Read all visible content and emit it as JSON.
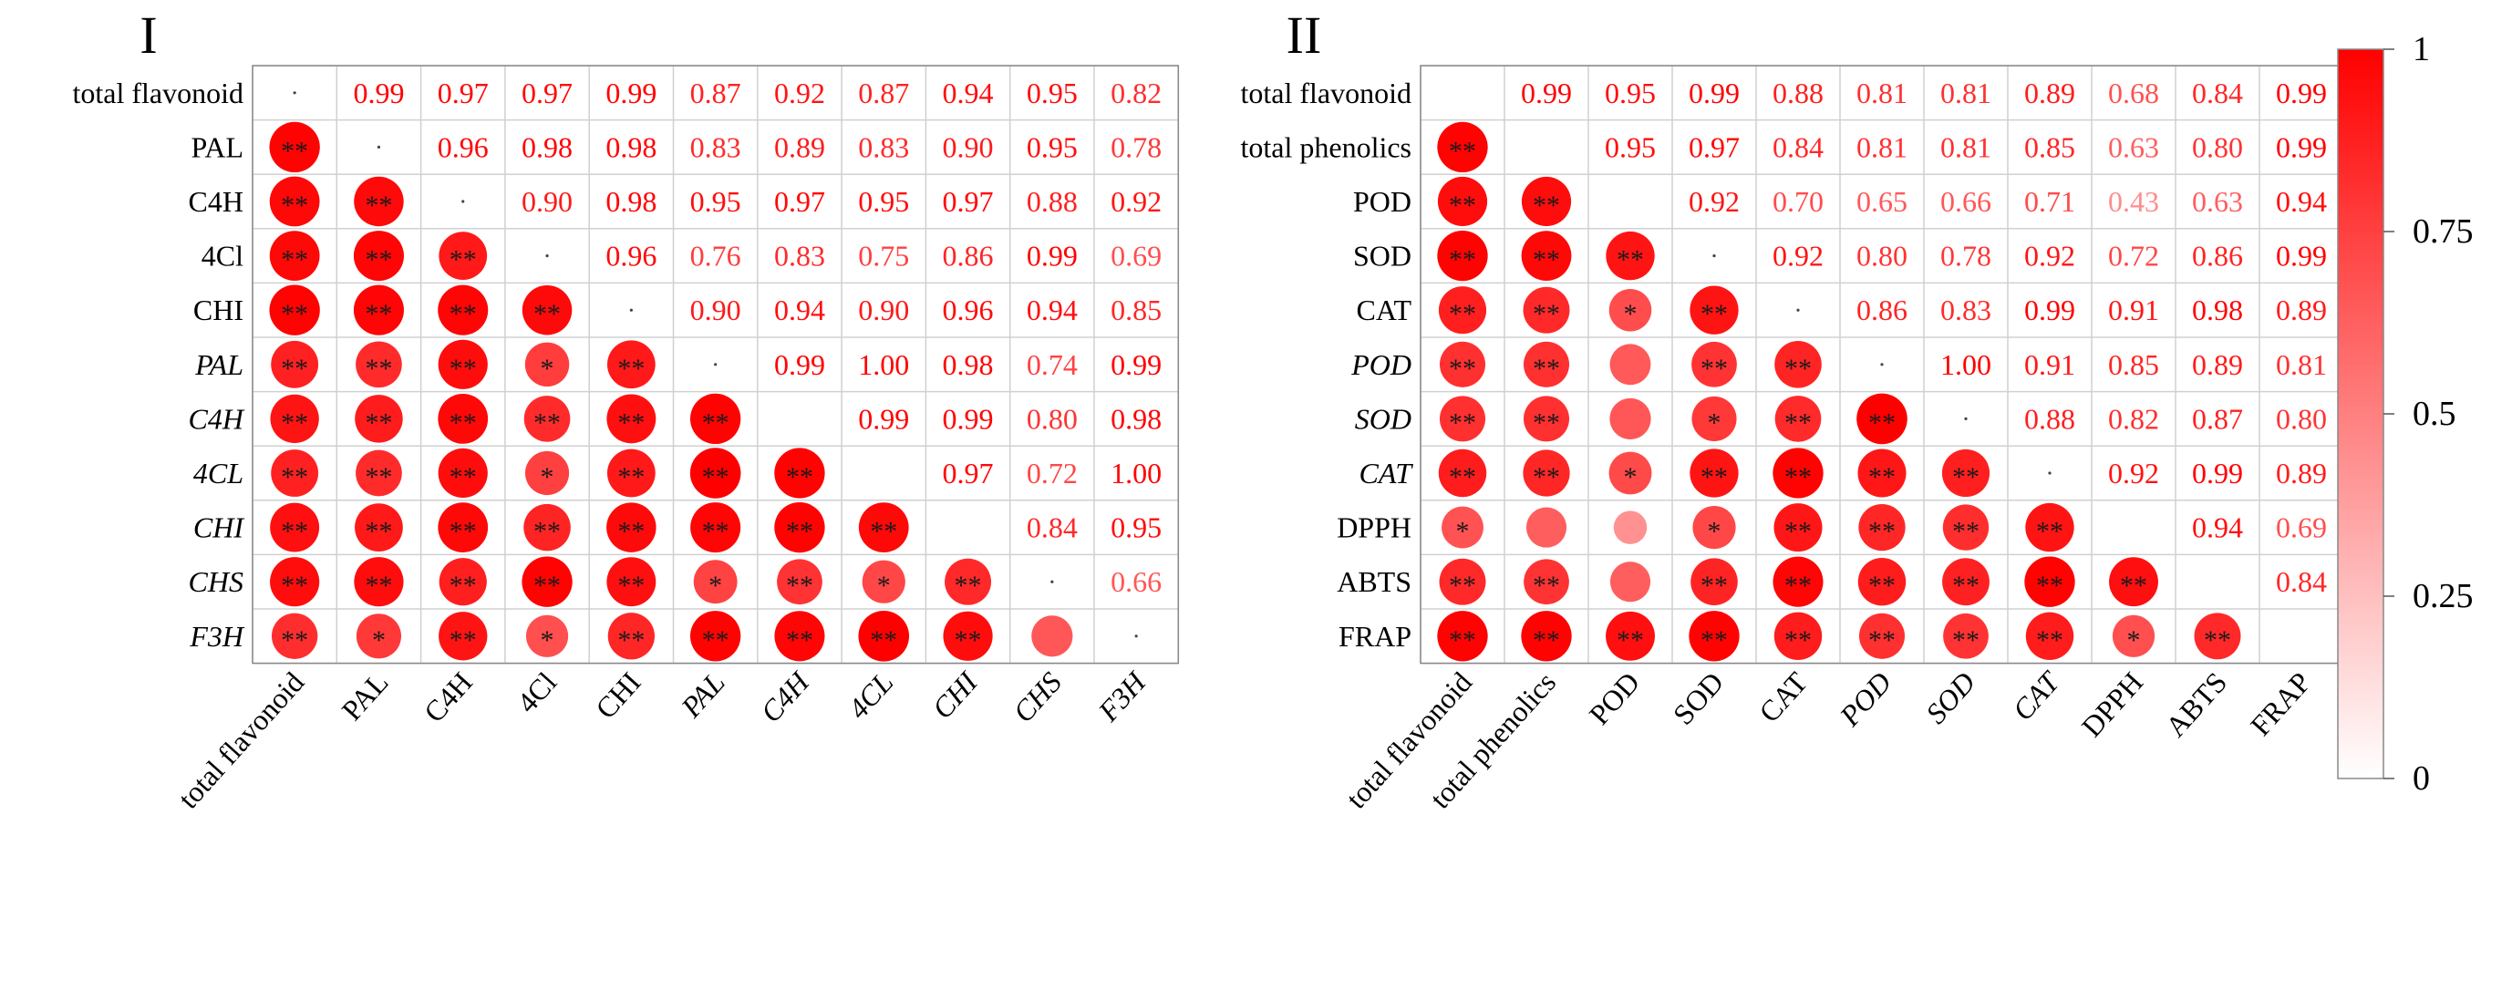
{
  "chart_data": [
    {
      "type": "heatmap",
      "title": "I",
      "labels": [
        "total flavonoid",
        "PAL",
        "C4H",
        "4Cl",
        "CHI",
        "PAL",
        "C4H",
        "4CL",
        "CHI",
        "CHS",
        "F3H"
      ],
      "italic": [
        false,
        false,
        false,
        false,
        false,
        true,
        true,
        true,
        true,
        true,
        true
      ],
      "upper": [
        [
          0.99,
          0.97,
          0.97,
          0.99,
          0.87,
          0.92,
          0.87,
          0.94,
          0.95,
          0.82
        ],
        [
          0.96,
          0.98,
          0.98,
          0.83,
          0.89,
          0.83,
          0.9,
          0.95,
          0.78
        ],
        [
          0.9,
          0.98,
          0.95,
          0.97,
          0.95,
          0.97,
          0.88,
          0.92
        ],
        [
          0.96,
          0.76,
          0.83,
          0.75,
          0.86,
          0.99,
          0.69
        ],
        [
          0.9,
          0.94,
          0.9,
          0.96,
          0.94,
          0.85
        ],
        [
          0.99,
          1.0,
          0.98,
          0.74,
          0.99
        ],
        [
          0.99,
          0.99,
          0.8,
          0.98
        ],
        [
          0.97,
          0.72,
          1.0
        ],
        [
          0.84,
          0.95
        ],
        [
          0.66
        ]
      ],
      "upper_text": [
        [
          "0.99",
          "0.97",
          "0.97",
          "0.99",
          "0.87",
          "0.92",
          "0.87",
          "0.94",
          "0.95",
          "0.82"
        ],
        [
          "0.96",
          "0.98",
          "0.98",
          "0.83",
          "0.89",
          "0.83",
          "0.90",
          "0.95",
          "0.78"
        ],
        [
          "0.90",
          "0.98",
          "0.95",
          "0.97",
          "0.95",
          "0.97",
          "0.88",
          "0.92"
        ],
        [
          "0.96",
          "0.76",
          "0.83",
          "0.75",
          "0.86",
          "0.99",
          "0.69"
        ],
        [
          "0.90",
          "0.94",
          "0.90",
          "0.96",
          "0.94",
          "0.85"
        ],
        [
          "0.99",
          "1.00",
          "0.98",
          "0.74",
          "0.99"
        ],
        [
          "0.99",
          "0.99",
          "0.80",
          "0.98"
        ],
        [
          "0.97",
          "0.72",
          "1.00"
        ],
        [
          "0.84",
          "0.95"
        ],
        [
          "0.66"
        ]
      ],
      "diag_dot": [
        true,
        true,
        true,
        true,
        true,
        true,
        false,
        false,
        false,
        true,
        true
      ],
      "stars": [
        [],
        [
          "**"
        ],
        [
          "**",
          "**"
        ],
        [
          "**",
          "**",
          "**"
        ],
        [
          "**",
          "**",
          "**",
          "**"
        ],
        [
          "**",
          "**",
          "**",
          "*",
          "**"
        ],
        [
          "**",
          "**",
          "**",
          "**",
          "**",
          "**"
        ],
        [
          "**",
          "**",
          "**",
          "*",
          "**",
          "**",
          "**"
        ],
        [
          "**",
          "**",
          "**",
          "**",
          "**",
          "**",
          "**",
          "**"
        ],
        [
          "**",
          "**",
          "**",
          "**",
          "**",
          "*",
          "**",
          "*",
          "**"
        ],
        [
          "**",
          "*",
          "**",
          "*",
          "**",
          "**",
          "**",
          "**",
          "**",
          ""
        ]
      ],
      "colorbar": {
        "ticks": [
          "1",
          "0.75",
          "0.5",
          "0.25",
          "0"
        ],
        "range": [
          0,
          1
        ]
      }
    },
    {
      "type": "heatmap",
      "title": "II",
      "labels": [
        "total flavonoid",
        "total phenolics",
        "POD",
        "SOD",
        "CAT",
        "POD",
        "SOD",
        "CAT",
        "DPPH",
        "ABTS",
        "FRAP"
      ],
      "italic": [
        false,
        false,
        false,
        false,
        false,
        true,
        true,
        true,
        false,
        false,
        false
      ],
      "upper": [
        [
          0.99,
          0.95,
          0.99,
          0.88,
          0.81,
          0.81,
          0.89,
          0.68,
          0.84,
          0.99
        ],
        [
          0.95,
          0.97,
          0.84,
          0.81,
          0.81,
          0.85,
          0.63,
          0.8,
          0.99
        ],
        [
          0.92,
          0.7,
          0.65,
          0.66,
          0.71,
          0.43,
          0.63,
          0.94
        ],
        [
          0.92,
          0.8,
          0.78,
          0.92,
          0.72,
          0.86,
          0.99
        ],
        [
          0.86,
          0.83,
          0.99,
          0.91,
          0.98,
          0.89
        ],
        [
          1.0,
          0.91,
          0.85,
          0.89,
          0.81
        ],
        [
          0.88,
          0.82,
          0.87,
          0.8
        ],
        [
          0.92,
          0.99,
          0.89
        ],
        [
          0.94,
          0.69
        ],
        [
          0.84
        ]
      ],
      "upper_text": [
        [
          "0.99",
          "0.95",
          "0.99",
          "0.88",
          "0.81",
          "0.81",
          "0.89",
          "0.68",
          "0.84",
          "0.99"
        ],
        [
          "0.95",
          "0.97",
          "0.84",
          "0.81",
          "0.81",
          "0.85",
          "0.63",
          "0.80",
          "0.99"
        ],
        [
          "0.92",
          "0.70",
          "0.65",
          "0.66",
          "0.71",
          "0.43",
          "0.63",
          "0.94"
        ],
        [
          "0.92",
          "0.80",
          "0.78",
          "0.92",
          "0.72",
          "0.86",
          "0.99"
        ],
        [
          "0.86",
          "0.83",
          "0.99",
          "0.91",
          "0.98",
          "0.89"
        ],
        [
          "1.00",
          "0.91",
          "0.85",
          "0.89",
          "0.81"
        ],
        [
          "0.88",
          "0.82",
          "0.87",
          "0.80"
        ],
        [
          "0.92",
          "0.99",
          "0.89"
        ],
        [
          "0.94",
          "0.69"
        ],
        [
          "0.84"
        ]
      ],
      "diag_dot": [
        false,
        false,
        false,
        true,
        true,
        true,
        true,
        true,
        false,
        false,
        false
      ],
      "stars": [
        [],
        [
          "**"
        ],
        [
          "**",
          "**"
        ],
        [
          "**",
          "**",
          "**"
        ],
        [
          "**",
          "**",
          "*",
          "**"
        ],
        [
          "**",
          "**",
          "",
          "**",
          "**"
        ],
        [
          "**",
          "**",
          "",
          "*",
          "**",
          "**"
        ],
        [
          "**",
          "**",
          "*",
          "**",
          "**",
          "**",
          "**"
        ],
        [
          "*",
          "",
          "",
          "*",
          "**",
          "**",
          "**",
          "**"
        ],
        [
          "**",
          "**",
          "",
          "**",
          "**",
          "**",
          "**",
          "**",
          "**"
        ],
        [
          "**",
          "**",
          "**",
          "**",
          "**",
          "**",
          "**",
          "**",
          "*",
          "**"
        ]
      ],
      "colorbar": {
        "ticks": [
          "1",
          "0.75",
          "0.5",
          "0.25",
          "0"
        ],
        "range": [
          0,
          1
        ]
      }
    }
  ]
}
